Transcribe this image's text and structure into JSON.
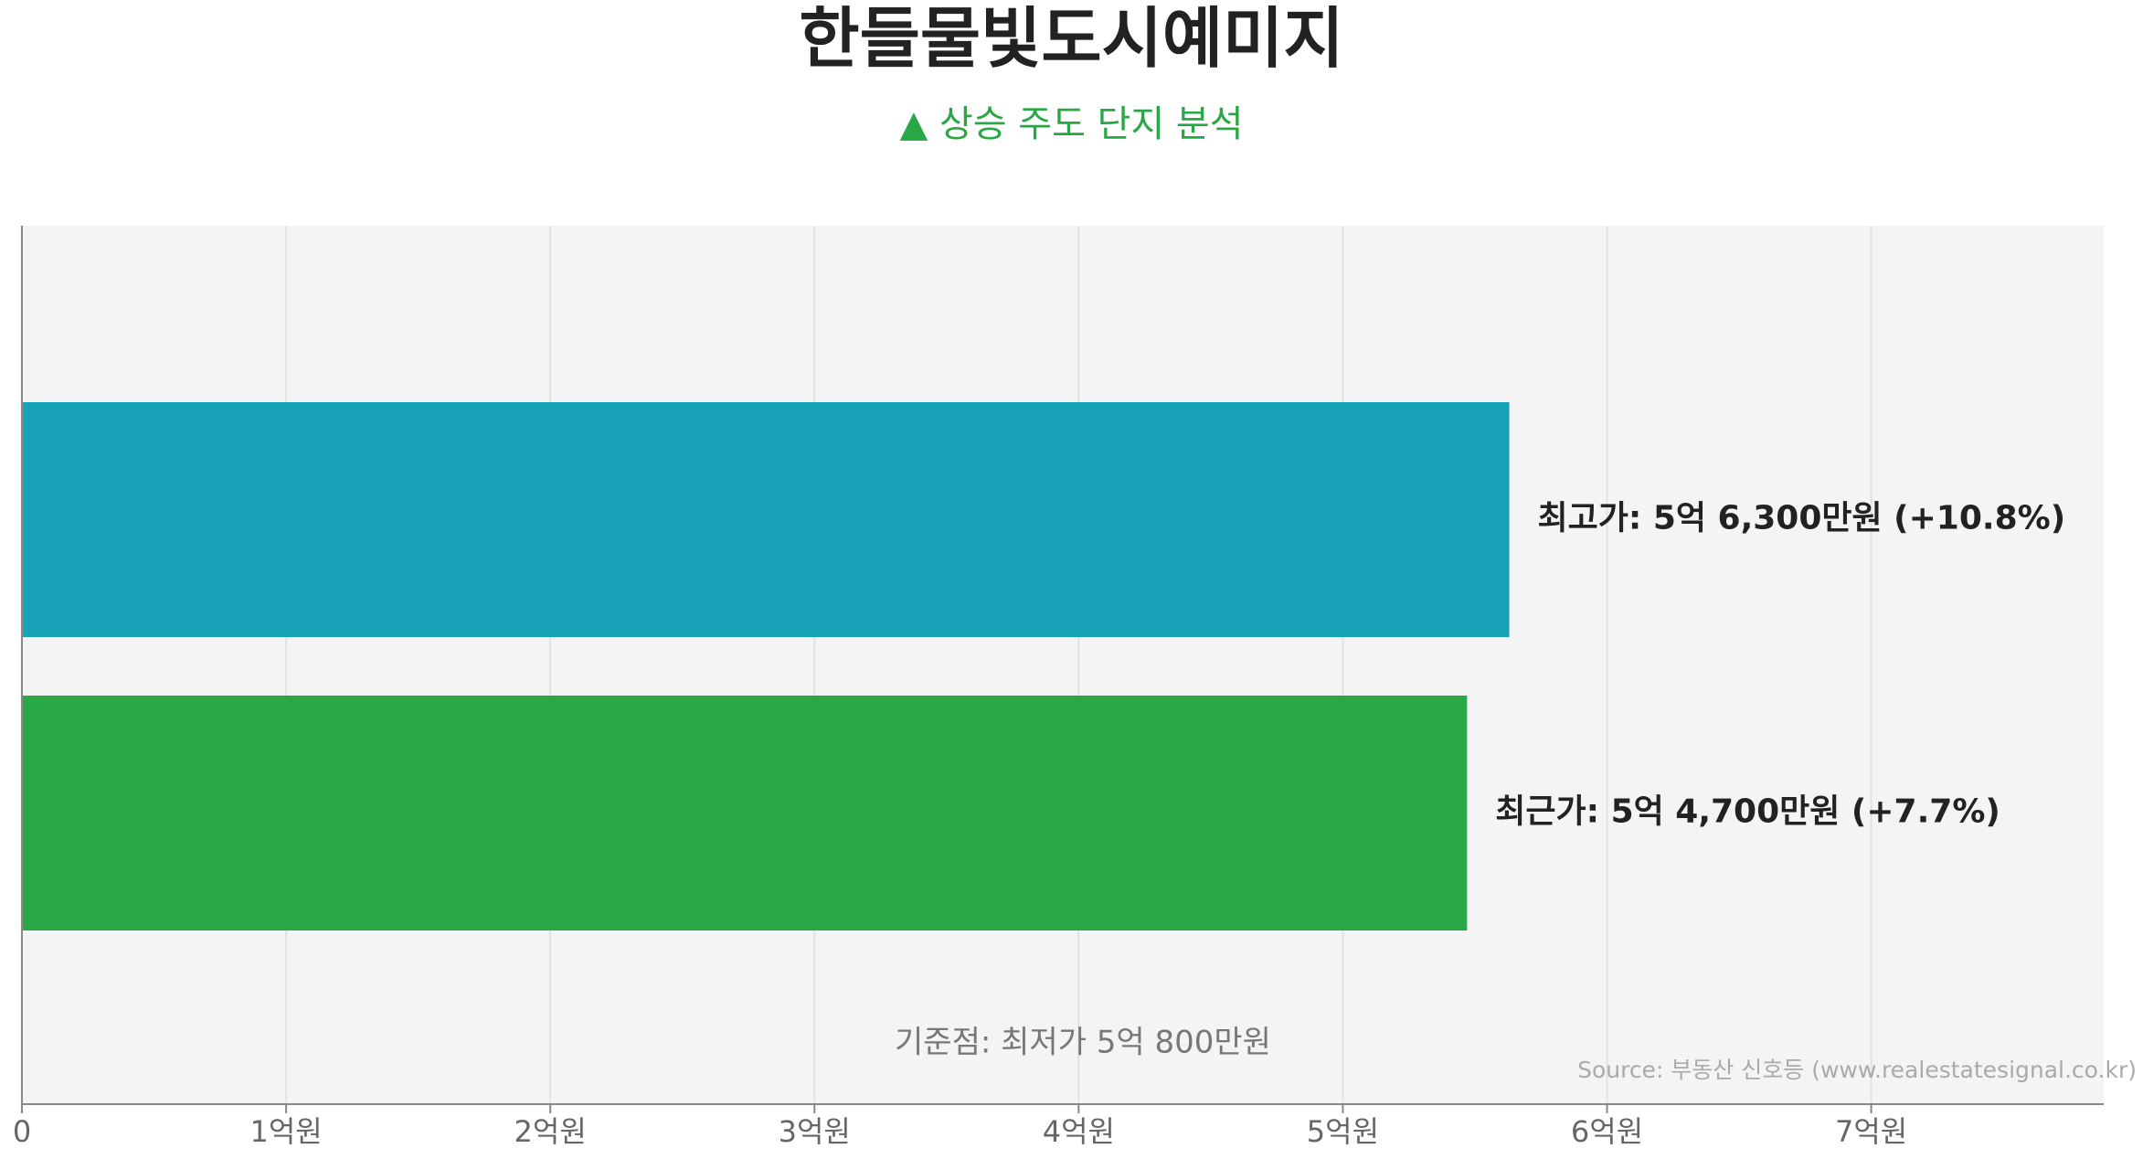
{
  "title": "한들물빛도시예미지",
  "subtitle": "▲ 상승 주도 단지 분석",
  "chart_data": {
    "type": "bar",
    "orientation": "horizontal",
    "categories": [
      "최고가",
      "최근가"
    ],
    "values": [
      56300,
      54700
    ],
    "value_unit": "만원",
    "xlim": [
      0,
      78800
    ],
    "x_ticks": [
      {
        "value": 0,
        "label": "0"
      },
      {
        "value": 10000,
        "label": "1억원"
      },
      {
        "value": 20000,
        "label": "2억원"
      },
      {
        "value": 30000,
        "label": "3억원"
      },
      {
        "value": 40000,
        "label": "4억원"
      },
      {
        "value": 50000,
        "label": "5억원"
      },
      {
        "value": 60000,
        "label": "6억원"
      },
      {
        "value": 70000,
        "label": "7억원"
      }
    ],
    "bars": [
      {
        "category": "최고가",
        "value": 56300,
        "color": "#17a2b8",
        "label": "최고가: 5억 6,300만원 (+10.8%)"
      },
      {
        "category": "최근가",
        "value": 54700,
        "color": "#28a745",
        "label": "최근가: 5억 4,700만원 (+7.7%)"
      }
    ],
    "annotation": "기준점: 최저가 5억 800만원",
    "source": "Source: 부동산 신호등 (www.realestatesignal.co.kr)",
    "grid": true,
    "plot_background": "#f4f4f4",
    "colors": {
      "title": "#222222",
      "subtitle": "#28a745",
      "grid": "#e2e2e2",
      "axis": "#888888",
      "tick_label": "#666666",
      "annotation": "#777777",
      "source": "#aaaaaa"
    }
  }
}
